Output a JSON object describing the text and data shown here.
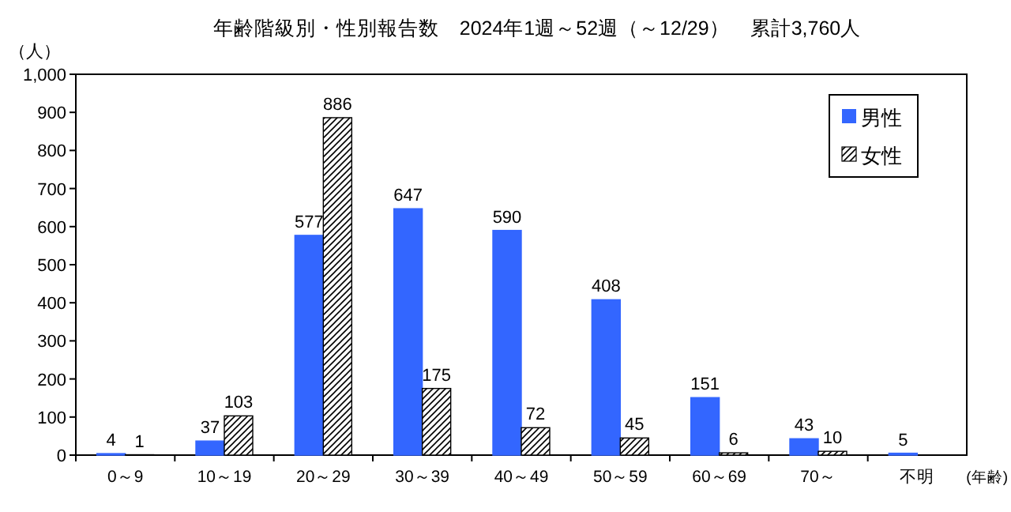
{
  "chart_data": {
    "type": "bar",
    "title": "年齢階級別・性別報告数　2024年1週～52週（～12/29）　累計3,760人",
    "ylabel": "（人）",
    "xlabel": "(年齢)",
    "categories": [
      "0～9",
      "10～19",
      "20～29",
      "30～39",
      "40～49",
      "50～59",
      "60～69",
      "70～",
      "不明"
    ],
    "series": [
      {
        "name": "男性",
        "color": "#3366ff",
        "values": [
          4,
          37,
          577,
          647,
          590,
          408,
          151,
          43,
          5
        ]
      },
      {
        "name": "女性",
        "color": "#000000",
        "values": [
          1,
          103,
          886,
          175,
          72,
          45,
          6,
          10,
          null
        ]
      }
    ],
    "ylim": [
      0,
      1000
    ],
    "yticks": [
      0,
      100,
      200,
      300,
      400,
      500,
      600,
      700,
      800,
      900,
      {
        "value": 1000,
        "label": "1,000"
      }
    ],
    "data_labels": true,
    "legend": "top right"
  }
}
